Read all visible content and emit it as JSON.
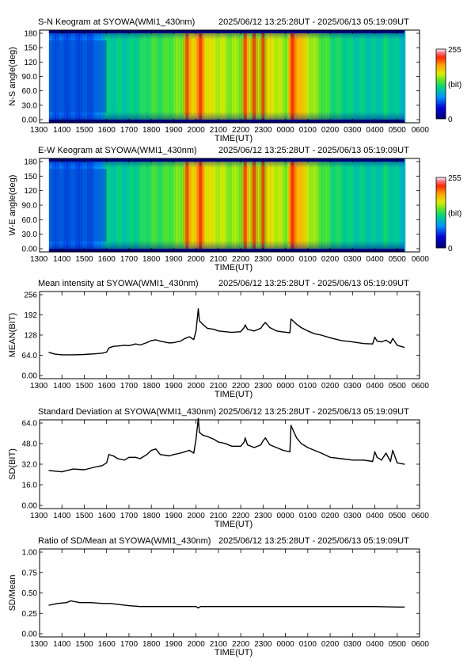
{
  "time_axis": {
    "ticks": [
      "1300",
      "1400",
      "1500",
      "1600",
      "1700",
      "1800",
      "1900",
      "2000",
      "2100",
      "2200",
      "2300",
      "0000",
      "0100",
      "0200",
      "0300",
      "0400",
      "0500",
      "0600"
    ],
    "label": "TIME(UT)"
  },
  "date_range": "2025/06/12 13:25:28UT - 2025/06/13 05:19:09UT",
  "colorbar": {
    "max_label": "255",
    "min_label": "0",
    "unit_label": "(bit)"
  },
  "panels": [
    {
      "title": "S-N Keogram at SYOWA(WMI1_430nm)",
      "ylabel": "N-S angle(deg)",
      "yticks": [
        "180",
        "150",
        "120",
        "90.0",
        "60.0",
        "30.0",
        "0.00"
      ]
    },
    {
      "title": "E-W Keogram at SYOWA(WMI1_430nm)",
      "ylabel": "W-E angle(deg)",
      "yticks": [
        "180",
        "150",
        "120",
        "90.0",
        "60.0",
        "30.0",
        "0.00"
      ]
    },
    {
      "title": "Mean intensity at SYOWA(WMI1_430nm)",
      "ylabel": "MEAN(BIT)",
      "yticks": [
        "256",
        "192",
        "128",
        "64.0",
        "0.00"
      ]
    },
    {
      "title": "Standard Deviation at SYOWA(WMI1_430nm)",
      "ylabel": "SD(BIT)",
      "yticks": [
        "64.0",
        "48.0",
        "32.0",
        "16.0",
        "0.00"
      ]
    },
    {
      "title": "Ratio of SD/Mean at SYOWA(WMI1_430nm)",
      "ylabel": "SD/Mean",
      "yticks": [
        "1.00",
        "0.75",
        "0.50",
        "0.25",
        "0.00"
      ]
    }
  ],
  "chart_data": [
    {
      "type": "heatmap",
      "title": "S-N Keogram at SYOWA(WMI1_430nm)",
      "subtitle": "2025/06/12 13:25:28UT - 2025/06/13 05:19:09UT",
      "xlabel": "TIME(UT)",
      "ylabel": "N-S angle(deg)",
      "xlim_hours": [
        13.0,
        30.0
      ],
      "data_range_hours": [
        13.42,
        29.32
      ],
      "ylim": [
        0,
        180
      ],
      "zlim": [
        0,
        255
      ],
      "colormap": "rainbow",
      "intensity_profile": {
        "time_hours": [
          13.42,
          14.0,
          15.0,
          15.5,
          16.0,
          16.5,
          17.0,
          17.5,
          18.0,
          18.5,
          19.0,
          19.3,
          19.6,
          20.0,
          20.2,
          20.3,
          20.6,
          21.0,
          21.5,
          22.0,
          22.3,
          22.6,
          23.0,
          23.3,
          23.6,
          24.0,
          24.3,
          24.6,
          25.0,
          25.5,
          26.0,
          27.0,
          27.5,
          28.0,
          28.5,
          29.0,
          29.32
        ],
        "level": [
          70,
          65,
          65,
          70,
          110,
          110,
          110,
          120,
          130,
          130,
          140,
          145,
          165,
          190,
          200,
          185,
          165,
          160,
          150,
          150,
          165,
          150,
          150,
          170,
          160,
          145,
          205,
          190,
          160,
          140,
          125,
          110,
          110,
          105,
          115,
          105,
          100
        ]
      },
      "bright_bands_hours": [
        19.6,
        20.2,
        22.2,
        22.6,
        23.0,
        24.3
      ],
      "dark_region": {
        "time_hours": [
          13.42,
          16.0
        ],
        "angle_deg": [
          20,
          160
        ]
      }
    },
    {
      "type": "heatmap",
      "title": "E-W Keogram at SYOWA(WMI1_430nm)",
      "subtitle": "2025/06/12 13:25:28UT - 2025/06/13 05:19:09UT",
      "xlabel": "TIME(UT)",
      "ylabel": "W-E angle(deg)",
      "xlim_hours": [
        13.0,
        30.0
      ],
      "data_range_hours": [
        13.42,
        29.32
      ],
      "ylim": [
        0,
        180
      ],
      "zlim": [
        0,
        255
      ],
      "colormap": "rainbow",
      "intensity_profile": {
        "time_hours": [
          13.42,
          14.0,
          15.0,
          15.5,
          16.0,
          16.5,
          17.0,
          17.5,
          18.0,
          18.5,
          19.0,
          19.3,
          19.6,
          20.0,
          20.2,
          20.3,
          20.6,
          21.0,
          21.5,
          22.0,
          22.3,
          22.6,
          23.0,
          23.3,
          23.6,
          24.0,
          24.3,
          24.6,
          25.0,
          25.5,
          26.0,
          27.0,
          27.5,
          28.0,
          28.5,
          29.0,
          29.32
        ],
        "level": [
          70,
          65,
          65,
          70,
          110,
          110,
          110,
          120,
          130,
          130,
          140,
          145,
          165,
          190,
          200,
          185,
          165,
          160,
          150,
          150,
          165,
          150,
          150,
          170,
          160,
          145,
          205,
          190,
          160,
          140,
          125,
          110,
          110,
          105,
          115,
          105,
          100
        ]
      },
      "bright_bands_hours": [
        19.6,
        20.2,
        22.2,
        22.6,
        23.0,
        24.3
      ],
      "dark_region": {
        "time_hours": [
          13.42,
          16.0
        ],
        "angle_deg": [
          20,
          160
        ]
      }
    },
    {
      "type": "line",
      "title": "Mean intensity at SYOWA(WMI1_430nm)",
      "subtitle": "2025/06/12 13:25:28UT - 2025/06/13 05:19:09UT",
      "xlabel": "TIME(UT)",
      "ylabel": "MEAN(BIT)",
      "xlim_hours": [
        13.0,
        30.0
      ],
      "ylim": [
        0,
        256
      ],
      "x_hours": [
        13.42,
        13.7,
        14.0,
        14.5,
        15.0,
        15.5,
        15.8,
        16.0,
        16.1,
        16.3,
        16.5,
        16.8,
        17.0,
        17.3,
        17.5,
        17.8,
        18.0,
        18.2,
        18.4,
        18.8,
        19.0,
        19.3,
        19.5,
        19.7,
        19.9,
        20.0,
        20.1,
        20.15,
        20.3,
        20.5,
        20.8,
        21.0,
        21.3,
        21.6,
        22.0,
        22.15,
        22.2,
        22.3,
        22.6,
        22.9,
        23.0,
        23.1,
        23.3,
        23.6,
        23.9,
        24.2,
        24.25,
        24.3,
        24.5,
        24.7,
        25.0,
        25.3,
        25.6,
        26.0,
        26.5,
        27.0,
        27.5,
        27.9,
        28.0,
        28.1,
        28.3,
        28.5,
        28.7,
        28.8,
        29.0,
        29.32
      ],
      "y": [
        77,
        72,
        70,
        70,
        71,
        73,
        75,
        78,
        90,
        95,
        96,
        98,
        97,
        102,
        99,
        106,
        112,
        114,
        110,
        105,
        106,
        110,
        118,
        123,
        115,
        140,
        205,
        170,
        160,
        148,
        145,
        140,
        138,
        136,
        138,
        150,
        158,
        145,
        140,
        148,
        158,
        165,
        150,
        140,
        137,
        135,
        175,
        172,
        160,
        150,
        140,
        132,
        128,
        120,
        112,
        108,
        103,
        102,
        122,
        110,
        108,
        113,
        104,
        118,
        98,
        92
      ]
    },
    {
      "type": "line",
      "title": "Standard Deviation at SYOWA(WMI1_430nm)",
      "subtitle": "2025/06/12 13:25:28UT - 2025/06/13 05:19:09UT",
      "xlabel": "TIME(UT)",
      "ylabel": "SD(BIT)",
      "xlim_hours": [
        13.0,
        30.0
      ],
      "ylim": [
        0,
        64
      ],
      "x_hours": [
        13.42,
        13.7,
        14.0,
        14.5,
        15.0,
        15.5,
        15.8,
        16.0,
        16.1,
        16.3,
        16.5,
        16.8,
        17.0,
        17.3,
        17.5,
        17.8,
        18.0,
        18.2,
        18.4,
        18.8,
        19.0,
        19.3,
        19.5,
        19.7,
        19.9,
        20.0,
        20.1,
        20.15,
        20.3,
        20.5,
        20.8,
        21.0,
        21.3,
        21.6,
        22.0,
        22.15,
        22.2,
        22.3,
        22.6,
        22.9,
        23.0,
        23.1,
        23.3,
        23.6,
        23.9,
        24.2,
        24.25,
        24.3,
        24.5,
        24.7,
        25.0,
        25.3,
        25.6,
        26.0,
        26.5,
        27.0,
        27.5,
        27.9,
        28.0,
        28.1,
        28.3,
        28.5,
        28.7,
        28.8,
        29.0,
        29.32
      ],
      "y": [
        27.5,
        27,
        26.5,
        28.5,
        28,
        30,
        31,
        33,
        39,
        38,
        36,
        35,
        37,
        37,
        36,
        39,
        42,
        43,
        39,
        38,
        39,
        40,
        41,
        42,
        40,
        50,
        65,
        55,
        53,
        52,
        50,
        48,
        47,
        45,
        45,
        48,
        51,
        46,
        44,
        46,
        49,
        51,
        46,
        44,
        42,
        41,
        60,
        58,
        51,
        47,
        44,
        42,
        40,
        37,
        36,
        35,
        35,
        34,
        41,
        37,
        35,
        40,
        34,
        42,
        33,
        32
      ]
    },
    {
      "type": "line",
      "title": "Ratio of SD/Mean at SYOWA(WMI1_430nm)",
      "subtitle": "2025/06/12 13:25:28UT - 2025/06/13 05:19:09UT",
      "xlabel": "TIME(UT)",
      "ylabel": "SD/Mean",
      "xlim_hours": [
        13.0,
        30.0
      ],
      "ylim": [
        0,
        1.0
      ],
      "x_hours": [
        13.42,
        13.8,
        14.2,
        14.4,
        14.8,
        15.3,
        15.8,
        16.2,
        16.5,
        17.0,
        17.5,
        18.0,
        19.0,
        20.0,
        20.1,
        20.2,
        21.0,
        22.0,
        23.0,
        24.0,
        25.0,
        26.0,
        27.0,
        28.0,
        29.0,
        29.32
      ],
      "y": [
        0.36,
        0.38,
        0.39,
        0.41,
        0.39,
        0.39,
        0.38,
        0.38,
        0.37,
        0.355,
        0.345,
        0.345,
        0.345,
        0.345,
        0.33,
        0.345,
        0.345,
        0.345,
        0.345,
        0.345,
        0.345,
        0.345,
        0.345,
        0.345,
        0.34,
        0.34
      ]
    }
  ]
}
